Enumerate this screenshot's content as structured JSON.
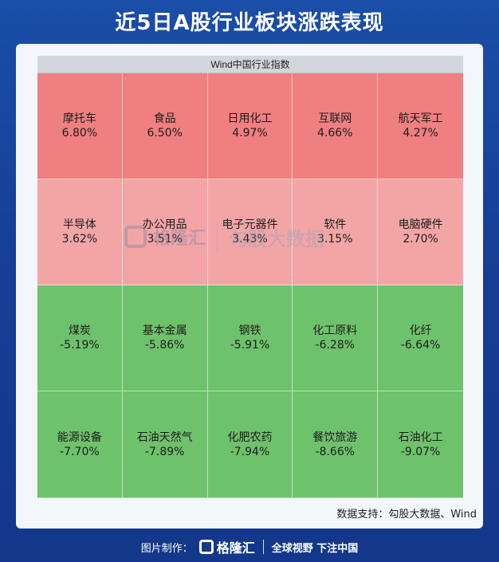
{
  "page": {
    "title": "近5日A股行业板块涨跌表现",
    "source": "数据支持：勾股大数据、Wind"
  },
  "watermark": {
    "brand": "格隆汇",
    "brand2": "勾股大数据"
  },
  "footer": {
    "label": "图片制作：",
    "brand": "格隆汇",
    "slogan": "全球视野 下注中国"
  },
  "colors": {
    "strong_up": "#ef7f80",
    "mild_up": "#f3a5a6",
    "down": "#6ec26c",
    "background": "#163f95"
  },
  "chart_data": {
    "type": "heatmap",
    "title": "Wind中国行业指数",
    "unit": "%",
    "cells": [
      {
        "name": "摩托车",
        "value": 6.8,
        "label": "6.80%"
      },
      {
        "name": "食品",
        "value": 6.5,
        "label": "6.50%"
      },
      {
        "name": "日用化工",
        "value": 4.97,
        "label": "4.97%"
      },
      {
        "name": "互联网",
        "value": 4.66,
        "label": "4.66%"
      },
      {
        "name": "航天军工",
        "value": 4.27,
        "label": "4.27%"
      },
      {
        "name": "半导体",
        "value": 3.62,
        "label": "3.62%"
      },
      {
        "name": "办公用品",
        "value": 3.51,
        "label": "3.51%"
      },
      {
        "name": "电子元器件",
        "value": 3.43,
        "label": "3.43%"
      },
      {
        "name": "软件",
        "value": 3.15,
        "label": "3.15%"
      },
      {
        "name": "电脑硬件",
        "value": 2.7,
        "label": "2.70%"
      },
      {
        "name": "煤炭",
        "value": -5.19,
        "label": "-5.19%"
      },
      {
        "name": "基本金属",
        "value": -5.86,
        "label": "-5.86%"
      },
      {
        "name": "钢铁",
        "value": -5.91,
        "label": "-5.91%"
      },
      {
        "name": "化工原料",
        "value": -6.28,
        "label": "-6.28%"
      },
      {
        "name": "化纤",
        "value": -6.64,
        "label": "-6.64%"
      },
      {
        "name": "能源设备",
        "value": -7.7,
        "label": "-7.70%"
      },
      {
        "name": "石油天然气",
        "value": -7.89,
        "label": "-7.89%"
      },
      {
        "name": "化肥农药",
        "value": -7.94,
        "label": "-7.94%"
      },
      {
        "name": "餐饮旅游",
        "value": -8.66,
        "label": "-8.66%"
      },
      {
        "name": "石油化工",
        "value": -9.07,
        "label": "-9.07%"
      }
    ]
  }
}
